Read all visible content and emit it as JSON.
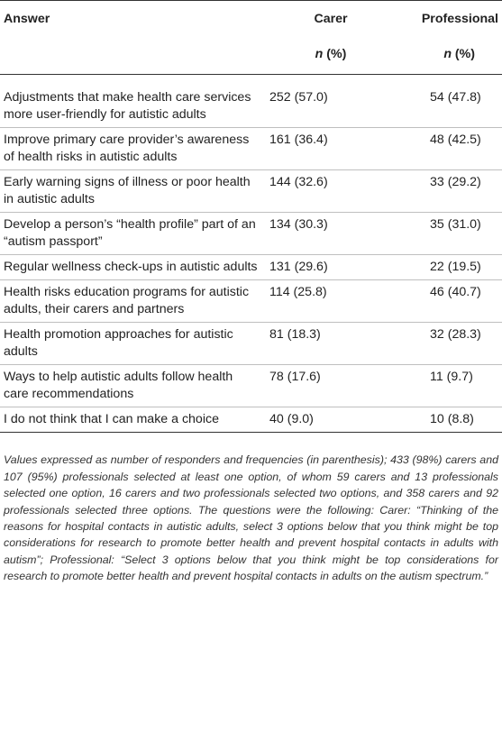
{
  "table": {
    "headers": {
      "answer": "Answer",
      "carer": "Carer",
      "professional": "Professional",
      "carer_unit_n": "n",
      "carer_unit_pct": " (%)",
      "prof_unit_n": "n",
      "prof_unit_pct": " (%)"
    },
    "rows": [
      {
        "answer": "Adjustments that make health care services more user-friendly for autistic adults",
        "carer": "252 (57.0)",
        "professional": "54 (47.8)"
      },
      {
        "answer": "Improve primary care provider’s awareness of health risks in autistic adults",
        "carer": "161 (36.4)",
        "professional": "48 (42.5)"
      },
      {
        "answer": "Early warning signs of illness or poor health in autistic adults",
        "carer": "144 (32.6)",
        "professional": "33 (29.2)"
      },
      {
        "answer": "Develop a person’s “health profile” part of an “autism passport”",
        "carer": "134 (30.3)",
        "professional": "35 (31.0)"
      },
      {
        "answer": "Regular wellness check-ups in autistic adults",
        "carer": "131 (29.6)",
        "professional": "22 (19.5)"
      },
      {
        "answer": "Health risks education programs for autistic adults, their carers and partners",
        "carer": "114 (25.8)",
        "professional": "46 (40.7)"
      },
      {
        "answer": "Health promotion approaches for autistic adults",
        "carer": "81 (18.3)",
        "professional": "32 (28.3)"
      },
      {
        "answer": "Ways to help autistic adults follow health care recommendations",
        "carer": "78 (17.6)",
        "professional": "11 (9.7)"
      },
      {
        "answer": "I do not think that I can make a choice",
        "carer": "40 (9.0)",
        "professional": "10 (8.8)"
      }
    ]
  },
  "footnote": "Values expressed as number of responders and frequencies (in parenthesis); 433 (98%) carers and 107 (95%) professionals selected at least one option, of whom 59 carers and 13 professionals selected one option, 16 carers and two professionals selected two options, and 358 carers and 92 professionals selected three options. The questions were the following: Carer: “Thinking of the reasons for hospital contacts in autistic adults, select 3 options below that you think might be top considerations for research to promote better health and prevent hospital contacts in adults with autism”; Professional: “Select 3 options below that you think might be top considerations for research to promote better health and prevent hospital contacts in adults on the autism spectrum.”"
}
